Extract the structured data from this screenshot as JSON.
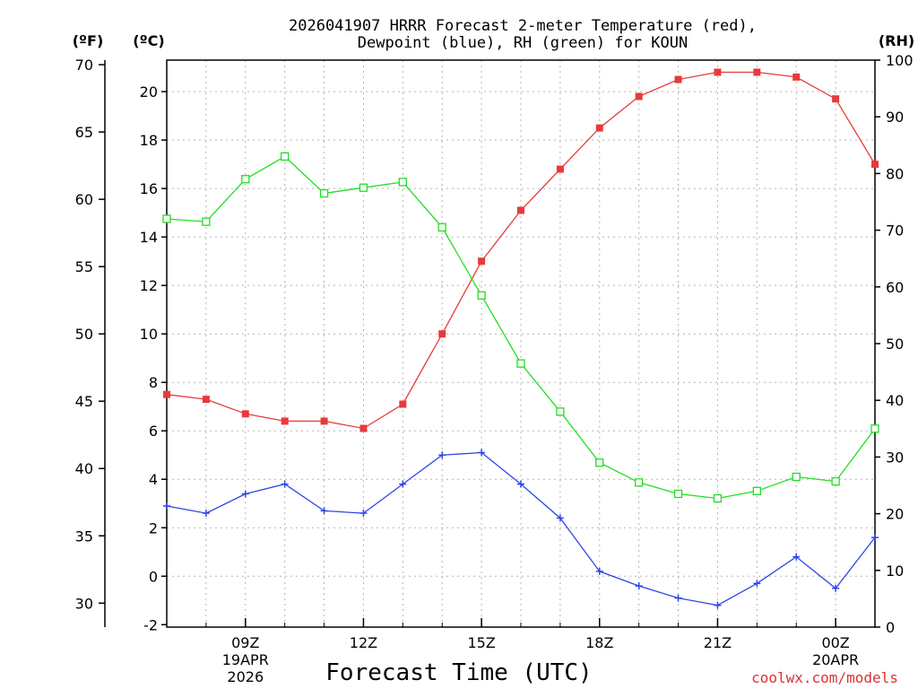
{
  "chart_data": {
    "type": "line",
    "title_lines": [
      "2026041907 HRRR Forecast 2-meter Temperature (red),",
      "Dewpoint (blue), RH (green) for KOUN"
    ],
    "unit_labels": {
      "fahrenheit": "(ºF)",
      "celsius": "(ºC)",
      "rh": "(RH)"
    },
    "xlabel": "Forecast Time (UTC)",
    "credit": "coolwx.com/models",
    "x_hours": [
      7,
      8,
      9,
      10,
      11,
      12,
      13,
      14,
      15,
      16,
      17,
      18,
      19,
      20,
      21,
      22,
      23,
      24,
      25
    ],
    "xlim": [
      7,
      25
    ],
    "x_ticks": [
      {
        "hour": 9,
        "lines": [
          "09Z",
          "19APR",
          "2026"
        ]
      },
      {
        "hour": 12,
        "lines": [
          "12Z"
        ]
      },
      {
        "hour": 15,
        "lines": [
          "15Z"
        ]
      },
      {
        "hour": 18,
        "lines": [
          "18Z"
        ]
      },
      {
        "hour": 21,
        "lines": [
          "21Z"
        ]
      },
      {
        "hour": 24,
        "lines": [
          "00Z",
          "20APR"
        ]
      }
    ],
    "celsius_axis": {
      "ylim": [
        -2.1,
        21.3
      ],
      "ticks": [
        -2,
        0,
        2,
        4,
        6,
        8,
        10,
        12,
        14,
        16,
        18,
        20
      ]
    },
    "fahrenheit_axis": {
      "ticks": [
        30,
        35,
        40,
        45,
        50,
        55,
        60,
        65,
        70
      ]
    },
    "rh_axis": {
      "ylim": [
        0,
        100
      ],
      "ticks": [
        0,
        10,
        20,
        30,
        40,
        50,
        60,
        70,
        80,
        90,
        100
      ]
    },
    "series": [
      {
        "name": "Temperature",
        "color": "#e83a3a",
        "marker": "filled-square",
        "axis": "celsius",
        "values": [
          7.5,
          7.3,
          6.7,
          6.4,
          6.4,
          6.1,
          7.1,
          10.0,
          13.0,
          15.1,
          16.8,
          18.5,
          19.8,
          20.5,
          20.8,
          20.8,
          20.6,
          19.7,
          17.0
        ]
      },
      {
        "name": "Dewpoint",
        "color": "#2e46e6",
        "marker": "plus",
        "axis": "celsius",
        "values": [
          2.9,
          2.6,
          3.4,
          3.8,
          2.7,
          2.6,
          3.8,
          5.0,
          5.1,
          3.8,
          2.4,
          0.2,
          -0.4,
          -0.9,
          -1.2,
          -0.3,
          0.8,
          -0.5,
          1.6
        ]
      },
      {
        "name": "RH",
        "color": "#22dd22",
        "marker": "open-square",
        "axis": "rh",
        "values": [
          72,
          71.5,
          79,
          83,
          76.5,
          77.5,
          78.5,
          70.5,
          58.5,
          46.5,
          38,
          29,
          25.5,
          23.5,
          22.7,
          24,
          26.5,
          25.7,
          35
        ]
      }
    ]
  }
}
